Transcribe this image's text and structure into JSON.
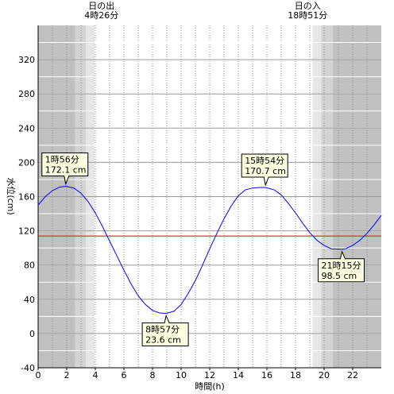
{
  "chart_data": {
    "type": "line",
    "title": "",
    "xlabel": "時間(h)",
    "ylabel": "水位(cm)",
    "xlim": [
      0,
      24
    ],
    "ylim": [
      -40,
      360
    ],
    "x_ticks": [
      0,
      2,
      4,
      6,
      8,
      10,
      12,
      14,
      16,
      18,
      20,
      22
    ],
    "y_ticks": [
      -40,
      0,
      40,
      80,
      120,
      160,
      200,
      240,
      280,
      320
    ],
    "grid": true,
    "series": [
      {
        "color": "#0000ff",
        "x": [
          0,
          0.5,
          1,
          1.5,
          1.93,
          2.5,
          3,
          3.5,
          4,
          4.5,
          5,
          5.5,
          6,
          6.5,
          7,
          7.5,
          8,
          8.5,
          8.95,
          9.5,
          10,
          10.5,
          11,
          11.5,
          12,
          12.5,
          13,
          13.5,
          14,
          14.5,
          15,
          15.5,
          15.9,
          16.5,
          17,
          17.5,
          18,
          18.5,
          19,
          19.5,
          20,
          20.5,
          21.25,
          21.5,
          22,
          22.5,
          23,
          23.5,
          24
        ],
        "y": [
          150,
          160,
          167,
          171,
          172.1,
          170,
          164,
          154,
          141,
          125,
          108,
          91,
          74,
          58,
          44,
          34,
          27,
          24,
          23.6,
          26,
          34,
          47,
          62,
          80,
          99,
          117,
          134,
          149,
          161,
          168,
          170,
          170.7,
          170.7,
          168,
          162,
          152,
          141,
          129,
          118,
          109,
          103,
          99,
          98.5,
          99,
          103,
          109,
          117,
          127,
          138
        ]
      }
    ],
    "reference_line": {
      "y": 114,
      "color": "#ff0000"
    },
    "shading": {
      "night_color": "#c0c0c0",
      "twilight_color": "#d3d3d3",
      "twilight2_color": "#e6e6e6",
      "day_color": "#ffffff",
      "bands": [
        {
          "from": 0,
          "to": 2.6,
          "kind": "night"
        },
        {
          "from": 2.6,
          "to": 3.35,
          "kind": "twilight"
        },
        {
          "from": 3.35,
          "to": 3.95,
          "kind": "twilight2"
        },
        {
          "from": 3.95,
          "to": 19.2,
          "kind": "day"
        },
        {
          "from": 19.2,
          "to": 19.8,
          "kind": "twilight2"
        },
        {
          "from": 19.8,
          "to": 20.6,
          "kind": "twilight"
        },
        {
          "from": 20.6,
          "to": 24,
          "kind": "night"
        }
      ]
    },
    "sun_labels": [
      {
        "name": "日の出",
        "time": "4時26分",
        "x": 4.43
      },
      {
        "name": "日の入",
        "time": "18時51分",
        "x": 18.85
      }
    ],
    "annotations": [
      {
        "time": "1時56分",
        "value": "172.1 cm",
        "x": 1.93,
        "y": 172.1,
        "placement": "above"
      },
      {
        "time": "8時57分",
        "value": "23.6 cm",
        "x": 8.95,
        "y": 23.6,
        "placement": "below"
      },
      {
        "time": "15時54分",
        "value": "170.7 cm",
        "x": 15.9,
        "y": 170.7,
        "placement": "above"
      },
      {
        "time": "21時15分",
        "value": "98.5 cm",
        "x": 21.25,
        "y": 98.5,
        "placement": "below"
      }
    ]
  }
}
